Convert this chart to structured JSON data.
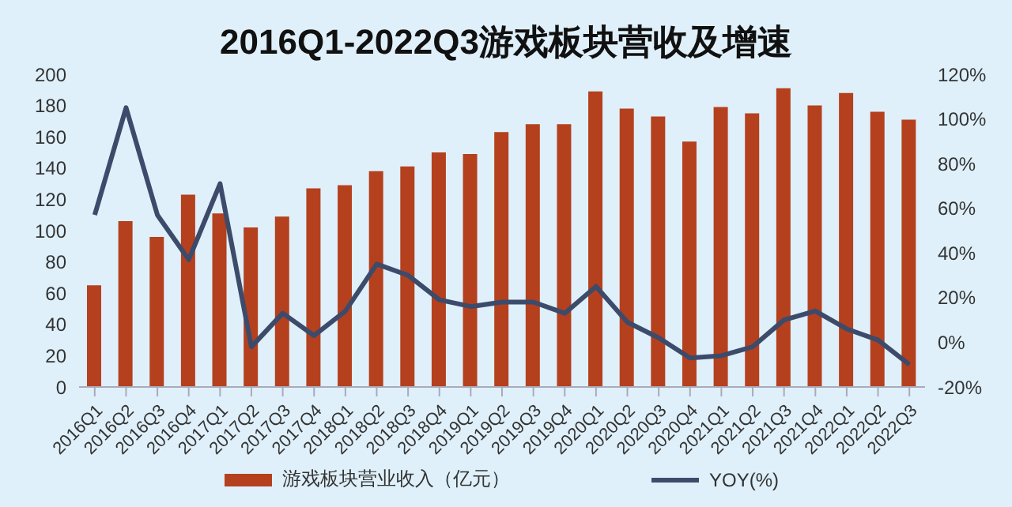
{
  "chart_data": {
    "type": "bar",
    "title": "2016Q1-2022Q3游戏板块营收及增速",
    "categories": [
      "2016Q1",
      "2016Q2",
      "2016Q3",
      "2016Q4",
      "2017Q1",
      "2017Q2",
      "2017Q3",
      "2017Q4",
      "2018Q1",
      "2018Q2",
      "2018Q3",
      "2018Q4",
      "2019Q1",
      "2019Q2",
      "2019Q3",
      "2019Q4",
      "2020Q1",
      "2020Q2",
      "2020Q3",
      "2020Q4",
      "2021Q1",
      "2021Q2",
      "2021Q3",
      "2021Q4",
      "2022Q1",
      "2022Q2",
      "2022Q3"
    ],
    "series": [
      {
        "name": "游戏板块营业收入（亿元）",
        "color": "#b5401e",
        "values": [
          65,
          106,
          96,
          123,
          111,
          102,
          109,
          127,
          129,
          138,
          141,
          150,
          149,
          163,
          168,
          168,
          189,
          178,
          173,
          157,
          179,
          175,
          191,
          180,
          188,
          176,
          171
        ]
      },
      {
        "name": "YOY(%)",
        "type": "line",
        "axis": "y2",
        "color": "#3d4b6b",
        "values": [
          57,
          105,
          57,
          37,
          71,
          -2,
          13,
          3,
          14,
          35,
          30,
          19,
          16,
          18,
          18,
          13,
          25,
          9,
          2,
          -7,
          -6,
          -2,
          10,
          14,
          6,
          1,
          -10
        ]
      }
    ],
    "ylim": [
      0,
      200
    ],
    "yticks": [
      0,
      20,
      40,
      60,
      80,
      100,
      120,
      140,
      160,
      180,
      200
    ],
    "y2lim": [
      -20,
      120
    ],
    "y2ticks": [
      {
        "value": -20,
        "label": "-20%"
      },
      {
        "value": 0,
        "label": "0%"
      },
      {
        "value": 20,
        "label": "20%"
      },
      {
        "value": 40,
        "label": "40%"
      },
      {
        "value": 60,
        "label": "60%"
      },
      {
        "value": 80,
        "label": "80%"
      },
      {
        "value": 100,
        "label": "100%"
      },
      {
        "value": 120,
        "label": "120%"
      }
    ],
    "grid": false,
    "legend": "bottom",
    "marker": "none",
    "line_style": "solid"
  }
}
